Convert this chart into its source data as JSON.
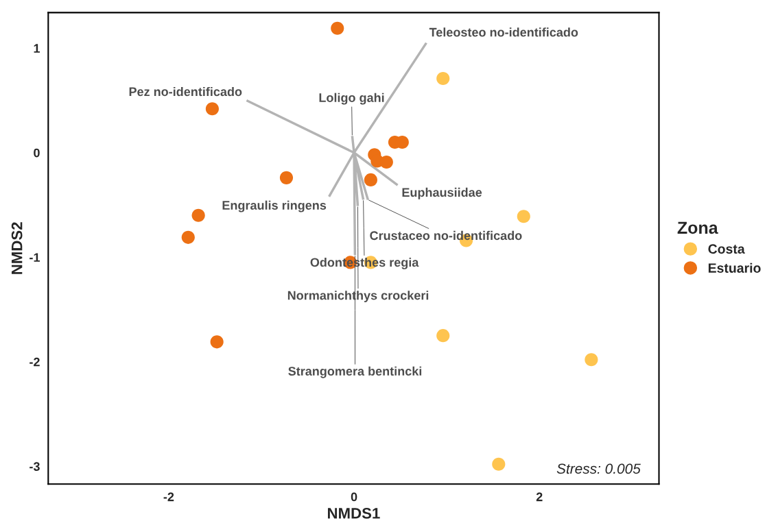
{
  "chart_data": {
    "type": "scatter",
    "xlabel": "NMDS1",
    "ylabel": "NMDS2",
    "legend_title": "Zona",
    "legend": "right",
    "grid": false,
    "marker": "circle",
    "xlim": [
      -3.3,
      3.29
    ],
    "ylim": [
      -3.17,
      1.34
    ],
    "xticks": [
      -2,
      0,
      2
    ],
    "yticks": [
      -3,
      -2,
      -1,
      0,
      1
    ],
    "series": [
      {
        "type": "line",
        "marker": "none",
        "color": "#a6a6a6",
        "x": [
          0,
          0.78,
          null,
          0,
          -1.16,
          null,
          0,
          -0.02,
          null,
          0,
          0.47,
          null,
          0,
          0.15,
          null,
          0,
          -0.27,
          null,
          0,
          0.1,
          null,
          0,
          0.04,
          null,
          0,
          0.01
        ],
        "values": [
          0,
          1.05,
          null,
          0,
          0.5,
          null,
          0,
          0.16,
          null,
          0,
          -0.31,
          null,
          0,
          -0.45,
          null,
          0,
          -0.42,
          null,
          0,
          -0.45,
          null,
          0,
          -0.51,
          null,
          0,
          -0.98
        ]
      },
      {
        "name": "Costa",
        "color": "#fec44f",
        "x": [
          0.96,
          1.83,
          1.21,
          0.18,
          0.96,
          2.56,
          1.56
        ],
        "values": [
          0.71,
          -0.61,
          -0.84,
          -1.05,
          -1.75,
          -1.98,
          -2.98
        ]
      },
      {
        "name": "Estuario",
        "color": "#ec7014",
        "x": [
          -0.18,
          -1.53,
          -0.73,
          -1.68,
          -1.79,
          -1.48,
          0.22,
          0.25,
          0.35,
          0.44,
          0.52,
          0.18,
          -0.04
        ],
        "values": [
          1.19,
          0.42,
          -0.24,
          -0.6,
          -0.81,
          -1.81,
          -0.02,
          -0.08,
          -0.09,
          0.1,
          0.1,
          -0.26,
          -1.05
        ]
      }
    ],
    "annotations": [
      {
        "text": "Teleosteo no-identificado",
        "x": 0.78,
        "y": 1.05
      },
      {
        "text": "Pez no-identificado",
        "x": -1.16,
        "y": 0.5
      },
      {
        "text": "Loligo gahi",
        "x": -0.02,
        "y": 0.16
      },
      {
        "text": "Euphausiidae",
        "x": 0.47,
        "y": -0.31
      },
      {
        "text": "Crustaceo no-identificado",
        "x": 0.15,
        "y": -0.45
      },
      {
        "text": "Engraulis ringens",
        "x": -0.27,
        "y": -0.42
      },
      {
        "text": "Odontesthes regia",
        "x": 0.1,
        "y": -0.45
      },
      {
        "text": "Normanichthys crockeri",
        "x": 0.04,
        "y": -0.51
      },
      {
        "text": "Strangomera bentincki",
        "x": 0.01,
        "y": -0.98
      },
      "Stress: 0.005"
    ]
  }
}
